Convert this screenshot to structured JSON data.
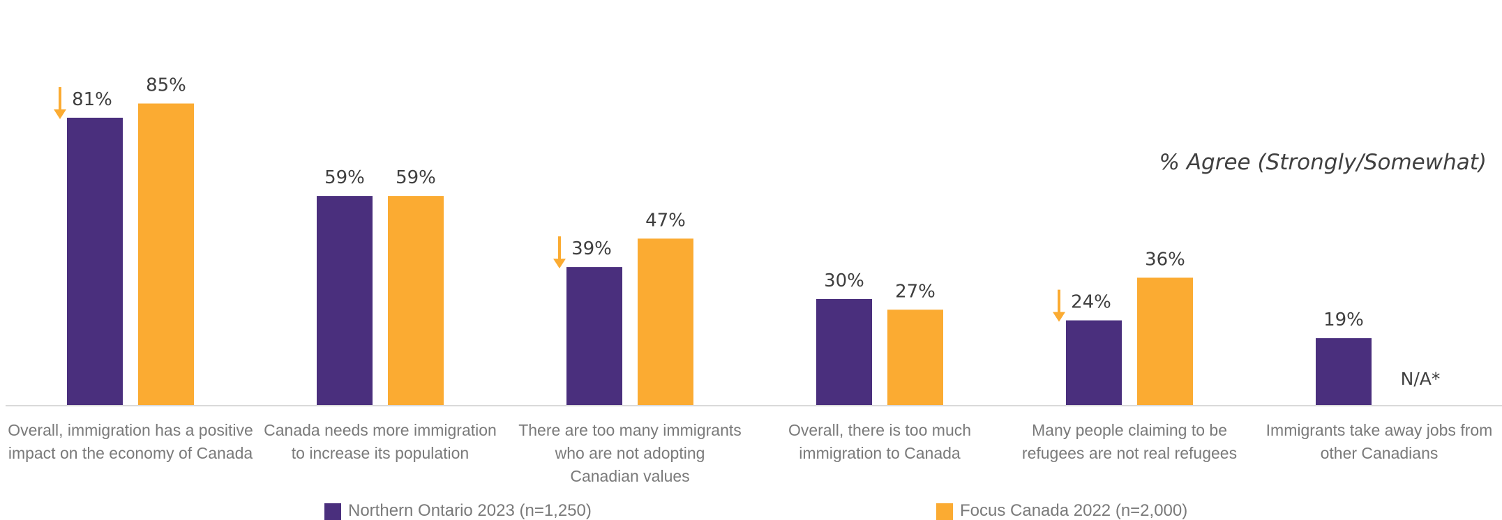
{
  "chart_data": {
    "type": "bar",
    "annotation": "% Agree (Strongly/Somewhat)",
    "categories": [
      [
        "Overall, immigration has a positive",
        "impact on the economy of Canada"
      ],
      [
        "Canada needs more immigration",
        "to increase its population"
      ],
      [
        "There are too many immigrants",
        "who are not adopting",
        "Canadian values"
      ],
      [
        "Overall, there is too much",
        "immigration to Canada"
      ],
      [
        "Many people claiming to be",
        "refugees are not real refugees"
      ],
      [
        "Immigrants take away jobs from",
        "other Canadians"
      ]
    ],
    "series": [
      {
        "name": "Northern Ontario 2023 (n=1,250)",
        "color": "#4a2f7d",
        "values": [
          81,
          59,
          39,
          30,
          24,
          19
        ],
        "labels": [
          "81%",
          "59%",
          "39%",
          "30%",
          "24%",
          "19%"
        ],
        "down_arrow": [
          true,
          false,
          true,
          false,
          true,
          false
        ]
      },
      {
        "name": "Focus Canada 2022 (n=2,000)",
        "color": "#fbab32",
        "values": [
          85,
          59,
          47,
          27,
          36,
          null
        ],
        "labels": [
          "85%",
          "59%",
          "47%",
          "27%",
          "36%",
          "N/A*"
        ]
      }
    ],
    "ylim": [
      0,
      90
    ],
    "grid": false,
    "legend_position": "bottom",
    "arrow_color": "#fbab32",
    "baseline_color": "#d9d9d9"
  }
}
